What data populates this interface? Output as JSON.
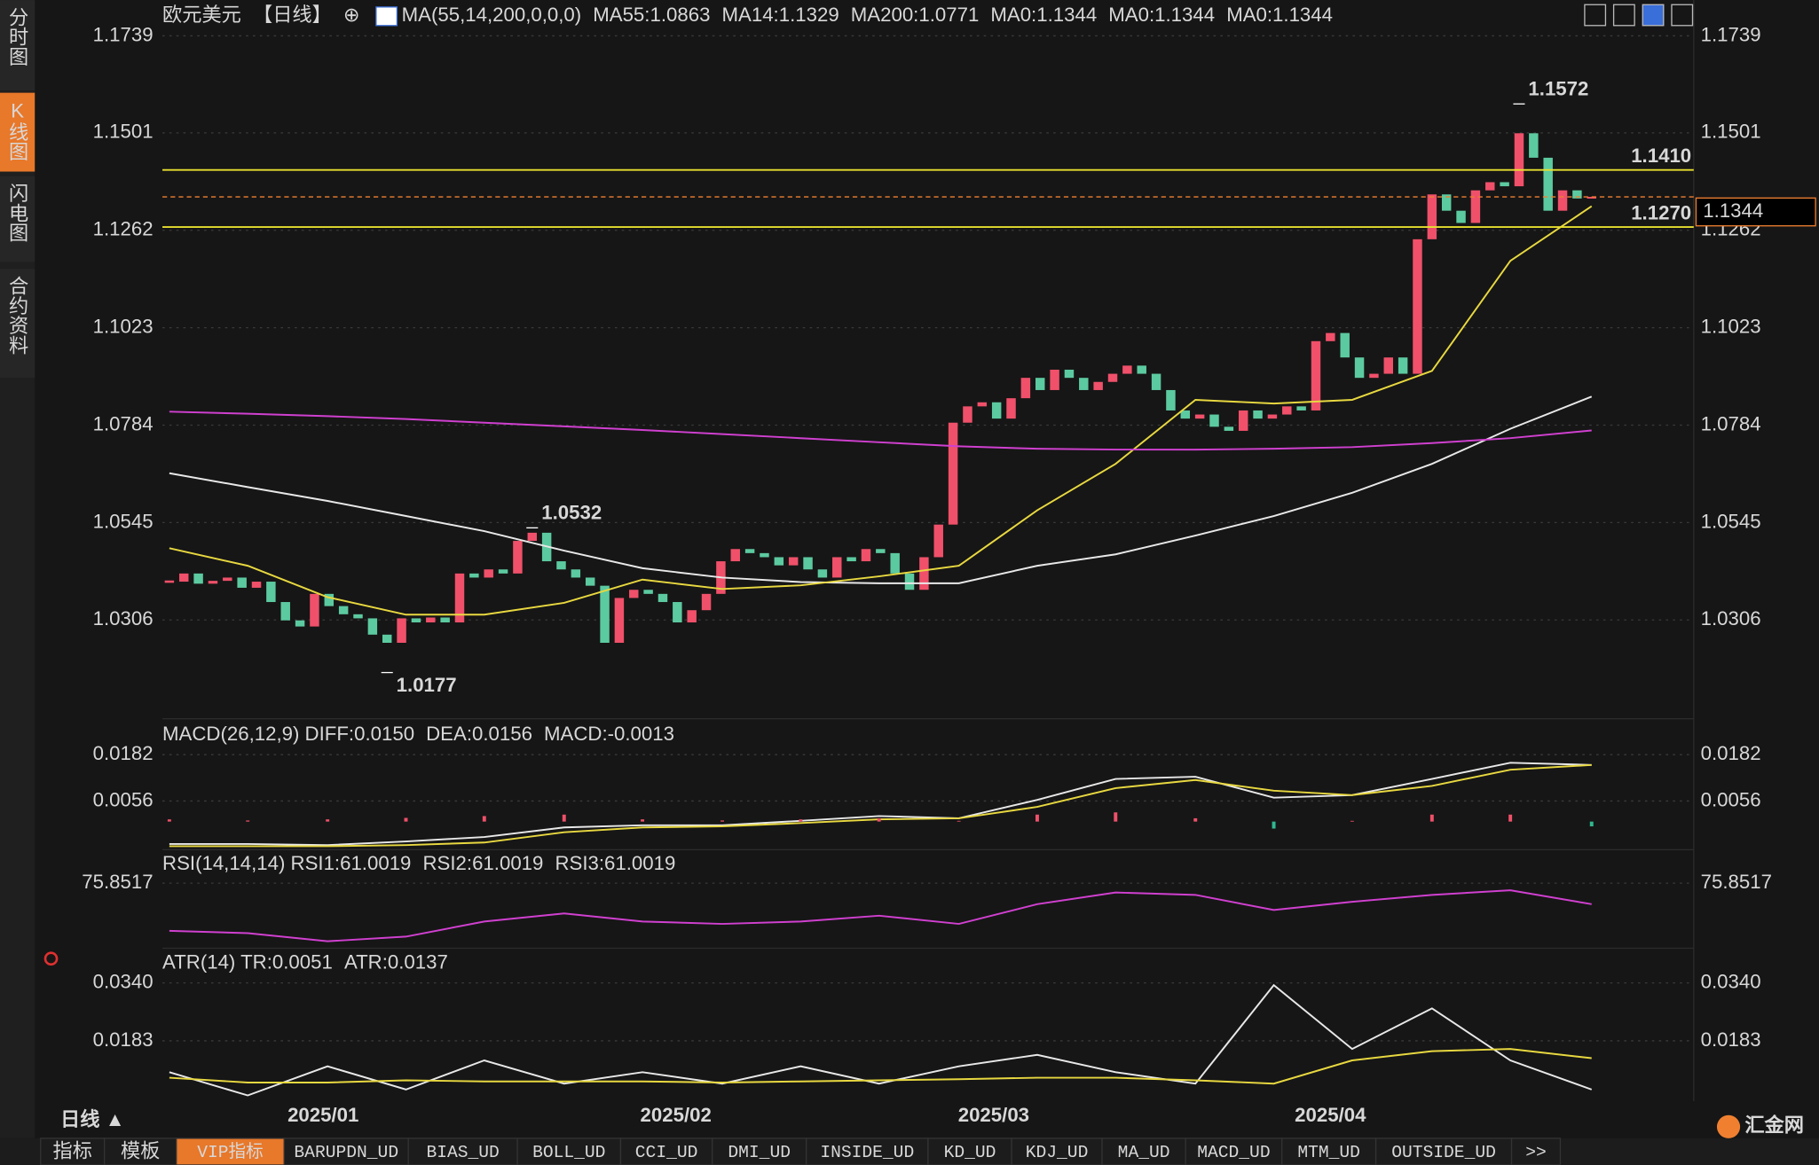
{
  "sidebar": {
    "tabs": [
      "分时图",
      "K线图",
      "闪电图",
      "合约资料"
    ],
    "active": 1
  },
  "chart_data": [
    {
      "type": "candlestick",
      "legend": [
        {
          "text": "欧元美元",
          "color": "#e0e0e0"
        },
        {
          "text": "【日线】",
          "color": "#f08030"
        },
        {
          "text": "⊕",
          "color": "#f08030"
        },
        {
          "text": "MA(55,14,200,0,0,0)",
          "color": "#e0e0e0"
        },
        {
          "text": "MA55:1.0863",
          "color": "#e0e0e0"
        },
        {
          "text": "MA14:1.1329",
          "color": "#e8d840"
        },
        {
          "text": "MA200:1.0771",
          "color": "#d040d0"
        },
        {
          "text": "MA0:1.1344",
          "color": "#40c040"
        },
        {
          "text": "MA0:1.1344",
          "color": "#909090"
        },
        {
          "text": "MA0:1.1344",
          "color": "#e04040"
        }
      ],
      "closes": [
        1.04,
        1.042,
        1.0395,
        1.0402,
        1.041,
        1.0385,
        1.04,
        1.035,
        1.0305,
        1.029,
        1.037,
        1.034,
        1.032,
        1.031,
        1.027,
        1.025,
        1.031,
        1.03,
        1.0312,
        1.03,
        1.042,
        1.041,
        1.043,
        1.042,
        1.05,
        1.052,
        1.045,
        1.043,
        1.041,
        1.039,
        1.025,
        1.036,
        1.038,
        1.037,
        1.035,
        1.03,
        1.033,
        1.037,
        1.045,
        1.048,
        1.047,
        1.046,
        1.044,
        1.046,
        1.043,
        1.041,
        1.046,
        1.045,
        1.048,
        1.047,
        1.042,
        1.038,
        1.046,
        1.054,
        1.079,
        1.083,
        1.084,
        1.08,
        1.085,
        1.09,
        1.087,
        1.092,
        1.09,
        1.087,
        1.089,
        1.091,
        1.093,
        1.091,
        1.087,
        1.082,
        1.08,
        1.081,
        1.078,
        1.077,
        1.082,
        1.08,
        1.081,
        1.083,
        1.082,
        1.099,
        1.101,
        1.095,
        1.09,
        1.091,
        1.095,
        1.091,
        1.124,
        1.135,
        1.131,
        1.128,
        1.136,
        1.138,
        1.137,
        1.15,
        1.144,
        1.131,
        1.136,
        1.134,
        1.1344
      ],
      "up_color": "#f0506a",
      "down_color": "#5ccaa0",
      "xlim": [
        0,
        98
      ],
      "xticks": [
        {
          "value": 10.6,
          "label": "2025/01"
        },
        {
          "value": 34.9,
          "label": "2025/02"
        },
        {
          "value": 56.8,
          "label": "2025/03"
        },
        {
          "value": 80,
          "label": "2025/04"
        }
      ],
      "ylim": [
        1.0078,
        1.177
      ],
      "yticks": [
        1.1739,
        1.1501,
        1.1262,
        1.1023,
        1.0784,
        1.0545,
        1.0306
      ],
      "x": [
        0,
        5.4,
        10.9,
        16.3,
        21.7,
        27.2,
        32.6,
        38.1,
        43.5,
        48.9,
        54.4,
        59.8,
        65.2,
        70.7,
        76.1,
        81.5,
        87,
        92.4,
        98
      ],
      "series": [
        {
          "color": "#e8e8e8",
          "values": [
            1.0666,
            1.0632,
            1.0598,
            1.0561,
            1.0524,
            1.0476,
            1.0433,
            1.041,
            1.0399,
            1.0396,
            1.0396,
            1.0439,
            1.0467,
            1.0513,
            1.0561,
            1.0618,
            1.0689,
            1.0775,
            1.0854
          ]
        },
        {
          "color": "#e8d840",
          "values": [
            1.0482,
            1.0439,
            1.0362,
            1.0319,
            1.0319,
            1.0348,
            1.0405,
            1.0382,
            1.0391,
            1.0413,
            1.0439,
            1.0575,
            1.0689,
            1.0846,
            1.0837,
            1.0846,
            1.0917,
            1.1187,
            1.1321
          ]
        },
        {
          "color": "#d040d0",
          "values": [
            1.0817,
            1.0812,
            1.0806,
            1.0799,
            1.079,
            1.0781,
            1.0772,
            1.0762,
            1.0752,
            1.0742,
            1.0732,
            1.0726,
            1.0724,
            1.0724,
            1.0726,
            1.073,
            1.074,
            1.0752,
            1.0771
          ]
        }
      ],
      "levels": [
        {
          "value": 1.141,
          "label": "1.1410",
          "color": "#e8e030"
        },
        {
          "value": 1.127,
          "label": "1.1270",
          "color": "#e8e030"
        }
      ],
      "last_price": {
        "value": 1.1344,
        "label": "1.1344",
        "color": "#f08030"
      },
      "annotations": [
        {
          "value": 1.1572,
          "x": 93,
          "color": "#f0506a"
        },
        {
          "value": 1.0532,
          "x": 25,
          "color": "#f0506a"
        },
        {
          "value": 1.0177,
          "x": 15,
          "color": "#5ccaa0"
        }
      ]
    },
    {
      "type": "macd",
      "legend": [
        {
          "text": "MACD(26,12,9) DIFF:0.0150",
          "color": "#e0e0e0"
        },
        {
          "text": "DEA:0.0156",
          "color": "#e8d840"
        },
        {
          "text": "MACD:-0.0013",
          "color": "#d040d0"
        }
      ],
      "ylim": [
        -0.0067,
        0.0201
      ],
      "yticks": [
        0.0182,
        0.0056
      ],
      "x": [
        0,
        5.4,
        10.9,
        16.3,
        21.7,
        27.2,
        32.6,
        38.1,
        43.5,
        48.9,
        54.4,
        59.8,
        65.2,
        70.7,
        76.1,
        81.5,
        87,
        92.4,
        98
      ],
      "series": [
        {
          "color": "#e8e8e8",
          "values": [
            -0.0061,
            -0.0061,
            -0.0064,
            -0.0054,
            -0.0042,
            -0.0016,
            -0.001,
            -0.001,
            0.0002,
            0.0015,
            0.0009,
            0.0059,
            0.0116,
            0.0122,
            0.0065,
            0.0072,
            0.0116,
            0.016,
            0.0154
          ]
        },
        {
          "color": "#e8d840",
          "values": [
            -0.0067,
            -0.0067,
            -0.0067,
            -0.0064,
            -0.0057,
            -0.0029,
            -0.0016,
            -0.0013,
            -0.0004,
            0.0006,
            0.0009,
            0.004,
            0.0091,
            0.0113,
            0.0084,
            0.0072,
            0.0097,
            0.0141,
            0.0154
          ]
        },
        {
          "type": "bar",
          "up_color": "#f0506a",
          "down_color": "#30b890",
          "values": [
            0.0006,
            0.0003,
            0.0006,
            0.001,
            0.0015,
            0.0019,
            0.0006,
            0.0003,
            0.0006,
            0.0009,
            0.0002,
            0.0019,
            0.0025,
            0.0009,
            -0.0019,
            0.0002,
            0.0019,
            0.0019,
            -0.0013
          ]
        }
      ]
    },
    {
      "type": "rsi",
      "legend": [
        {
          "text": "RSI(14,14,14) RSI1:61.0019",
          "color": "#e0e0e0"
        },
        {
          "text": "RSI2:61.0019",
          "color": "#e8d840"
        },
        {
          "text": "RSI3:61.0019",
          "color": "#d040d0"
        }
      ],
      "ylim": [
        25,
        95
      ],
      "yticks": [
        75.8517
      ],
      "x": [
        0,
        5.4,
        10.9,
        16.3,
        21.7,
        27.2,
        32.6,
        38.1,
        43.5,
        48.9,
        54.4,
        59.8,
        65.2,
        70.7,
        76.1,
        81.5,
        87,
        92.4,
        98
      ],
      "series": [
        {
          "color": "#d040d0",
          "values": [
            39.9,
            38.1,
            32,
            35.5,
            46.9,
            53,
            46.9,
            45.1,
            46.9,
            51.3,
            45.1,
            60,
            68.8,
            67,
            55.6,
            61.8,
            67,
            70.5,
            60
          ]
        }
      ]
    },
    {
      "type": "atr",
      "legend": [
        {
          "text": "ATR(14) TR:0.0051",
          "color": "#e0e0e0"
        },
        {
          "text": "ATR:0.0137",
          "color": "#e8d840"
        }
      ],
      "ylim": [
        0.0035,
        0.0365
      ],
      "yticks": [
        {
          "value": 0.034,
          "label": "0.0340"
        },
        0.0183
      ],
      "x": [
        0,
        5.4,
        10.9,
        16.3,
        21.7,
        27.2,
        32.6,
        38.1,
        43.5,
        48.9,
        54.4,
        59.8,
        65.2,
        70.7,
        76.1,
        81.5,
        87,
        92.4,
        98
      ],
      "series": [
        {
          "color": "#e8e8e8",
          "values": [
            0.0098,
            0.0035,
            0.0114,
            0.0051,
            0.013,
            0.0067,
            0.0098,
            0.0067,
            0.0114,
            0.0067,
            0.0114,
            0.0145,
            0.0098,
            0.0067,
            0.0334,
            0.0161,
            0.0271,
            0.013,
            0.0051
          ]
        },
        {
          "color": "#e8d840",
          "values": [
            0.0083,
            0.007,
            0.007,
            0.0076,
            0.0073,
            0.0073,
            0.0073,
            0.007,
            0.0073,
            0.0076,
            0.0079,
            0.0083,
            0.0083,
            0.0076,
            0.0067,
            0.013,
            0.0155,
            0.0161,
            0.0136
          ]
        }
      ]
    }
  ],
  "period_label": "日线 ▲",
  "logo": "汇金网",
  "toolbar": {
    "tabs": [
      "指标",
      "模板",
      "VIP指标",
      "BARUPDN_UD",
      "BIAS_UD",
      "BOLL_UD",
      "CCI_UD",
      "DMI_UD",
      "INSIDE_UD",
      "KD_UD",
      "KDJ_UD",
      "MA_UD",
      "MACD_UD",
      "MTM_UD",
      "OUTSIDE_UD",
      ">>"
    ],
    "active": 2
  }
}
